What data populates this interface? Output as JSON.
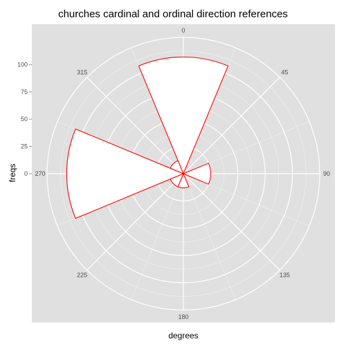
{
  "chart_data": {
    "type": "polar-bar",
    "title": "churches cardinal and ordinal direction references",
    "xlabel": "degrees",
    "ylabel": "freqs",
    "theta_ticks": [
      "0",
      "45",
      "90",
      "135",
      "180",
      "225",
      "270",
      "315"
    ],
    "r_ticks": [
      0,
      25,
      50,
      75,
      100
    ],
    "r_range": [
      0,
      125
    ],
    "categories": [
      "0",
      "45",
      "90",
      "135",
      "180",
      "225",
      "270",
      "315"
    ],
    "values": [
      107,
      0,
      25,
      0,
      13,
      13,
      107,
      13
    ],
    "bar_width_degrees": 45,
    "fill_color": "#ffffff",
    "stroke_color": "#ff0000",
    "panel_background": "#e0e0e0",
    "grid_color": "#ffffff"
  }
}
